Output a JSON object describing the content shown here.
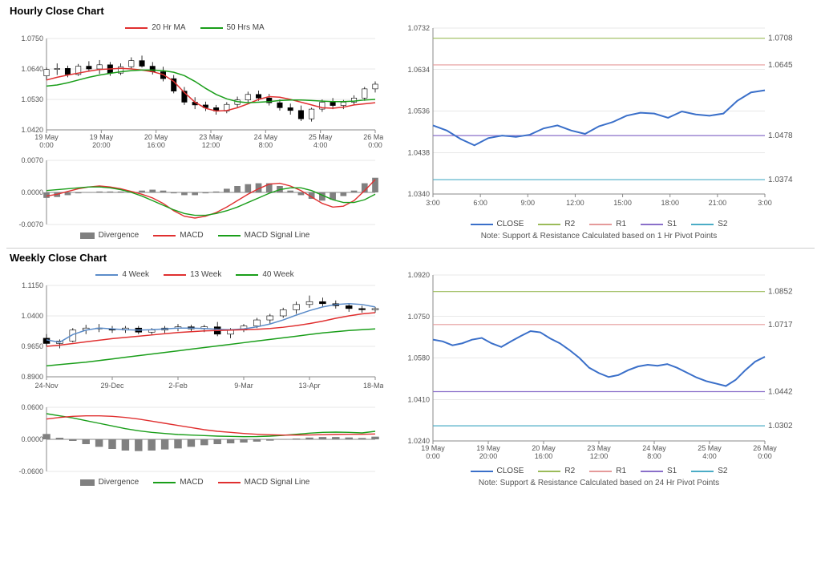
{
  "hourly": {
    "title": "Hourly Close Chart",
    "price_legend": [
      {
        "label": "20 Hr MA",
        "color": "#e03030"
      },
      {
        "label": "50 Hrs MA",
        "color": "#1a9e1a"
      }
    ],
    "price_chart": {
      "ylim": [
        1.042,
        1.075
      ],
      "yticks": [
        1.042,
        1.053,
        1.064,
        1.075
      ],
      "xticks": [
        "19 May 0:00",
        "19 May 20:00",
        "20 May 16:00",
        "23 May 12:00",
        "24 May 8:00",
        "25 May 4:00",
        "26 May 0:00"
      ],
      "ma20_color": "#e03030",
      "ma50_color": "#1a9e1a",
      "price_color": "#000000",
      "ma20": [
        1.06,
        1.061,
        1.0618,
        1.0625,
        1.0632,
        1.0638,
        1.064,
        1.0642,
        1.064,
        1.0636,
        1.063,
        1.062,
        1.0595,
        1.0555,
        1.052,
        1.0498,
        1.0488,
        1.049,
        1.05,
        1.0514,
        1.053,
        1.054,
        1.0538,
        1.053,
        1.052,
        1.051,
        1.05,
        1.0498,
        1.0502,
        1.051,
        1.0514,
        1.0518
      ],
      "ma50": [
        1.0578,
        1.0582,
        1.059,
        1.06,
        1.061,
        1.0618,
        1.0624,
        1.063,
        1.0634,
        1.0636,
        1.0636,
        1.0634,
        1.0628,
        1.0616,
        1.0595,
        1.057,
        1.0548,
        1.0532,
        1.0522,
        1.0518,
        1.052,
        1.0522,
        1.0526,
        1.0528,
        1.0528,
        1.0526,
        1.0524,
        1.0522,
        1.0522,
        1.0524,
        1.0528,
        1.053
      ],
      "candles": [
        [
          1.0615,
          1.0645,
          1.06,
          1.0638
        ],
        [
          1.0638,
          1.066,
          1.0618,
          1.0642
        ],
        [
          1.0642,
          1.0652,
          1.061,
          1.062
        ],
        [
          1.062,
          1.0658,
          1.0615,
          1.065
        ],
        [
          1.065,
          1.0668,
          1.0632,
          1.064
        ],
        [
          1.064,
          1.0672,
          1.0622,
          1.0655
        ],
        [
          1.0655,
          1.0665,
          1.0615,
          1.0625
        ],
        [
          1.0625,
          1.066,
          1.0618,
          1.0648
        ],
        [
          1.0648,
          1.0682,
          1.064,
          1.067
        ],
        [
          1.067,
          1.0688,
          1.0645,
          1.065
        ],
        [
          1.065,
          1.0665,
          1.062,
          1.063
        ],
        [
          1.063,
          1.0648,
          1.0595,
          1.0605
        ],
        [
          1.0605,
          1.0618,
          1.0552,
          1.056
        ],
        [
          1.056,
          1.0575,
          1.051,
          1.052
        ],
        [
          1.052,
          1.0538,
          1.0495,
          1.051
        ],
        [
          1.051,
          1.0522,
          1.0488,
          1.05
        ],
        [
          1.05,
          1.051,
          1.0475,
          1.0488
        ],
        [
          1.0488,
          1.052,
          1.048,
          1.0512
        ],
        [
          1.0512,
          1.054,
          1.0502,
          1.0528
        ],
        [
          1.0528,
          1.0558,
          1.0518,
          1.0548
        ],
        [
          1.0548,
          1.0562,
          1.0525,
          1.0535
        ],
        [
          1.0535,
          1.055,
          1.0508,
          1.0518
        ],
        [
          1.0518,
          1.053,
          1.049,
          1.05
        ],
        [
          1.05,
          1.0515,
          1.0475,
          1.049
        ],
        [
          1.049,
          1.0508,
          1.0452,
          1.046
        ],
        [
          1.046,
          1.05,
          1.045,
          1.0495
        ],
        [
          1.0495,
          1.053,
          1.0485,
          1.052
        ],
        [
          1.052,
          1.0535,
          1.0495,
          1.0508
        ],
        [
          1.0508,
          1.0528,
          1.0495,
          1.052
        ],
        [
          1.052,
          1.0545,
          1.051,
          1.0535
        ],
        [
          1.0535,
          1.0575,
          1.0525,
          1.0568
        ],
        [
          1.0568,
          1.0595,
          1.0555,
          1.0585
        ]
      ]
    },
    "macd_chart": {
      "ylim": [
        -0.007,
        0.007
      ],
      "yticks": [
        -0.007,
        0.0,
        0.007
      ],
      "legend": [
        {
          "label": "Divergence",
          "color": "#808080",
          "type": "bar"
        },
        {
          "label": "MACD",
          "color": "#e03030",
          "type": "line"
        },
        {
          "label": "MACD Signal Line",
          "color": "#1a9e1a",
          "type": "line"
        }
      ],
      "macd": [
        -0.0008,
        -0.0004,
        0.0002,
        0.0008,
        0.0012,
        0.0014,
        0.0012,
        0.0008,
        0.0002,
        -0.0004,
        -0.0012,
        -0.0024,
        -0.004,
        -0.0052,
        -0.0056,
        -0.0052,
        -0.0044,
        -0.0032,
        -0.0018,
        -0.0004,
        0.0008,
        0.0018,
        0.002,
        0.0014,
        0.0004,
        -0.001,
        -0.0024,
        -0.0032,
        -0.003,
        -0.0018,
        0.0004,
        0.0028
      ],
      "signal": [
        0.0004,
        0.0006,
        0.0008,
        0.001,
        0.0012,
        0.0012,
        0.001,
        0.0006,
        0.0,
        -0.0008,
        -0.0018,
        -0.0028,
        -0.0038,
        -0.0046,
        -0.005,
        -0.005,
        -0.0046,
        -0.004,
        -0.0032,
        -0.0022,
        -0.0012,
        -0.0002,
        0.0006,
        0.001,
        0.001,
        0.0004,
        -0.0006,
        -0.0016,
        -0.0022,
        -0.0022,
        -0.0016,
        -0.0004
      ],
      "divergence": [
        -0.0012,
        -0.001,
        -0.0006,
        -0.0002,
        0.0,
        0.0002,
        0.0002,
        0.0002,
        0.0002,
        0.0004,
        0.0006,
        0.0004,
        -0.0002,
        -0.0006,
        -0.0006,
        -0.0002,
        0.0002,
        0.0008,
        0.0014,
        0.0018,
        0.002,
        0.002,
        0.0014,
        0.0004,
        -0.0006,
        -0.0014,
        -0.0018,
        -0.0016,
        -0.0008,
        0.0004,
        0.002,
        0.0032
      ]
    },
    "pivot": {
      "ylim": [
        1.034,
        1.0732
      ],
      "yticks": [
        1.034,
        1.0438,
        1.0536,
        1.0634,
        1.0732
      ],
      "xticks": [
        "3:00",
        "6:00",
        "9:00",
        "12:00",
        "15:00",
        "18:00",
        "21:00",
        "3:00"
      ],
      "close_color": "#3a6fc9",
      "r2": {
        "value": 1.0708,
        "color": "#9bbb59"
      },
      "r1": {
        "value": 1.0645,
        "color": "#e59a9a"
      },
      "s1": {
        "value": 1.0478,
        "color": "#8a6fc9"
      },
      "s2": {
        "value": 1.0374,
        "color": "#4bacc6"
      },
      "close": [
        1.0502,
        1.049,
        1.047,
        1.0455,
        1.0472,
        1.0478,
        1.0475,
        1.048,
        1.0495,
        1.0502,
        1.049,
        1.0482,
        1.05,
        1.051,
        1.0525,
        1.0532,
        1.053,
        1.052,
        1.0535,
        1.0528,
        1.0525,
        1.053,
        1.056,
        1.058,
        1.0585
      ],
      "legend": [
        {
          "label": "CLOSE",
          "color": "#3a6fc9"
        },
        {
          "label": "R2",
          "color": "#9bbb59"
        },
        {
          "label": "R1",
          "color": "#e59a9a"
        },
        {
          "label": "S1",
          "color": "#8a6fc9"
        },
        {
          "label": "S2",
          "color": "#4bacc6"
        }
      ],
      "note": "Note: Support & Resistance Calculated based on 1 Hr Pivot Points"
    }
  },
  "weekly": {
    "title": "Weekly Close Chart",
    "price_legend": [
      {
        "label": "4 Week",
        "color": "#5b8cc9"
      },
      {
        "label": "13 Week",
        "color": "#e03030"
      },
      {
        "label": "40 Week",
        "color": "#1a9e1a"
      }
    ],
    "price_chart": {
      "ylim": [
        0.89,
        1.115
      ],
      "yticks": [
        0.89,
        0.965,
        1.04,
        1.115
      ],
      "xticks": [
        "24-Nov",
        "29-Dec",
        "2-Feb",
        "9-Mar",
        "13-Apr",
        "18-May"
      ],
      "ma4_color": "#5b8cc9",
      "ma13_color": "#e03030",
      "ma40_color": "#1a9e1a",
      "ma4": [
        0.981,
        0.975,
        0.994,
        1.005,
        1.01,
        1.008,
        1.006,
        1.005,
        1.006,
        1.008,
        1.01,
        1.01,
        1.009,
        1.007,
        1.006,
        1.008,
        1.013,
        1.02,
        1.03,
        1.042,
        1.053,
        1.062,
        1.068,
        1.07,
        1.068,
        1.062
      ],
      "ma13": [
        0.965,
        0.968,
        0.972,
        0.976,
        0.98,
        0.984,
        0.987,
        0.99,
        0.993,
        0.996,
        0.999,
        1.001,
        1.003,
        1.004,
        1.005,
        1.006,
        1.007,
        1.009,
        1.012,
        1.016,
        1.021,
        1.027,
        1.034,
        1.04,
        1.045,
        1.048
      ],
      "ma40": [
        0.917,
        0.92,
        0.923,
        0.926,
        0.93,
        0.934,
        0.938,
        0.942,
        0.946,
        0.95,
        0.954,
        0.958,
        0.962,
        0.966,
        0.97,
        0.974,
        0.978,
        0.982,
        0.986,
        0.99,
        0.994,
        0.998,
        1.001,
        1.004,
        1.006,
        1.008
      ],
      "candles": [
        [
          0.985,
          0.995,
          0.965,
          0.972
        ],
        [
          0.972,
          0.982,
          0.96,
          0.978
        ],
        [
          0.978,
          1.01,
          0.975,
          1.005
        ],
        [
          1.005,
          1.018,
          0.995,
          1.01
        ],
        [
          1.01,
          1.02,
          1.0,
          1.008
        ],
        [
          1.008,
          1.015,
          0.998,
          1.005
        ],
        [
          1.005,
          1.015,
          0.998,
          1.01
        ],
        [
          1.01,
          1.015,
          0.995,
          1.0
        ],
        [
          1.0,
          1.01,
          0.992,
          1.005
        ],
        [
          1.005,
          1.015,
          0.998,
          1.01
        ],
        [
          1.01,
          1.02,
          1.002,
          1.013
        ],
        [
          1.013,
          1.018,
          1.002,
          1.008
        ],
        [
          1.008,
          1.018,
          1.0,
          1.013
        ],
        [
          1.013,
          1.025,
          0.99,
          0.995
        ],
        [
          0.995,
          1.01,
          0.985,
          1.005
        ],
        [
          1.005,
          1.02,
          1.0,
          1.015
        ],
        [
          1.015,
          1.035,
          1.01,
          1.03
        ],
        [
          1.03,
          1.045,
          1.02,
          1.04
        ],
        [
          1.04,
          1.06,
          1.035,
          1.055
        ],
        [
          1.055,
          1.075,
          1.045,
          1.068
        ],
        [
          1.068,
          1.09,
          1.06,
          1.075
        ],
        [
          1.075,
          1.085,
          1.062,
          1.07
        ],
        [
          1.07,
          1.078,
          1.058,
          1.065
        ],
        [
          1.065,
          1.07,
          1.05,
          1.058
        ],
        [
          1.058,
          1.065,
          1.048,
          1.055
        ],
        [
          1.055,
          1.062,
          1.048,
          1.058
        ]
      ]
    },
    "macd_chart": {
      "ylim": [
        -0.06,
        0.06
      ],
      "yticks": [
        -0.06,
        0.0,
        0.06
      ],
      "legend": [
        {
          "label": "Divergence",
          "color": "#808080",
          "type": "bar"
        },
        {
          "label": "MACD",
          "color": "#1a9e1a",
          "type": "line"
        },
        {
          "label": "MACD Signal Line",
          "color": "#e03030",
          "type": "line"
        }
      ],
      "macd": [
        0.048,
        0.044,
        0.04,
        0.035,
        0.03,
        0.025,
        0.02,
        0.016,
        0.013,
        0.011,
        0.009,
        0.008,
        0.007,
        0.006,
        0.0055,
        0.005,
        0.0052,
        0.006,
        0.0075,
        0.0095,
        0.0115,
        0.013,
        0.0135,
        0.013,
        0.012,
        0.015
      ],
      "signal": [
        0.038,
        0.041,
        0.043,
        0.044,
        0.044,
        0.043,
        0.041,
        0.038,
        0.034,
        0.03,
        0.026,
        0.022,
        0.018,
        0.015,
        0.013,
        0.011,
        0.0095,
        0.0085,
        0.008,
        0.008,
        0.0082,
        0.0087,
        0.0092,
        0.0095,
        0.0095,
        0.01
      ],
      "divergence": [
        0.01,
        0.003,
        -0.003,
        -0.009,
        -0.014,
        -0.018,
        -0.021,
        -0.022,
        -0.021,
        -0.019,
        -0.017,
        -0.014,
        -0.011,
        -0.009,
        -0.0075,
        -0.006,
        -0.0043,
        -0.0025,
        -0.0005,
        0.0015,
        0.0033,
        0.0043,
        0.0043,
        0.0035,
        0.0025,
        0.005
      ]
    },
    "pivot": {
      "ylim": [
        1.024,
        1.092
      ],
      "yticks": [
        1.024,
        1.041,
        1.058,
        1.075,
        1.092
      ],
      "xticks": [
        "19 May 0:00",
        "19 May 20:00",
        "20 May 16:00",
        "23 May 12:00",
        "24 May 8:00",
        "25 May 4:00",
        "26 May 0:00"
      ],
      "close_color": "#3a6fc9",
      "r2": {
        "value": 1.0852,
        "color": "#9bbb59"
      },
      "r1": {
        "value": 1.0717,
        "color": "#e59a9a"
      },
      "s1": {
        "value": 1.0442,
        "color": "#8a6fc9"
      },
      "s2": {
        "value": 1.0302,
        "color": "#4bacc6"
      },
      "close": [
        1.0655,
        1.0648,
        1.0632,
        1.064,
        1.0655,
        1.0662,
        1.064,
        1.0625,
        1.0648,
        1.067,
        1.069,
        1.0685,
        1.066,
        1.064,
        1.0612,
        1.058,
        1.054,
        1.0518,
        1.0502,
        1.051,
        1.053,
        1.0545,
        1.0552,
        1.0548,
        1.0555,
        1.054,
        1.052,
        1.05,
        1.0485,
        1.0475,
        1.0465,
        1.049,
        1.053,
        1.0565,
        1.0585
      ],
      "legend": [
        {
          "label": "CLOSE",
          "color": "#3a6fc9"
        },
        {
          "label": "R2",
          "color": "#9bbb59"
        },
        {
          "label": "R1",
          "color": "#e59a9a"
        },
        {
          "label": "S1",
          "color": "#8a6fc9"
        },
        {
          "label": "S2",
          "color": "#4bacc6"
        }
      ],
      "note": "Note: Support & Resistance Calculated based on 24 Hr Pivot Points"
    }
  }
}
